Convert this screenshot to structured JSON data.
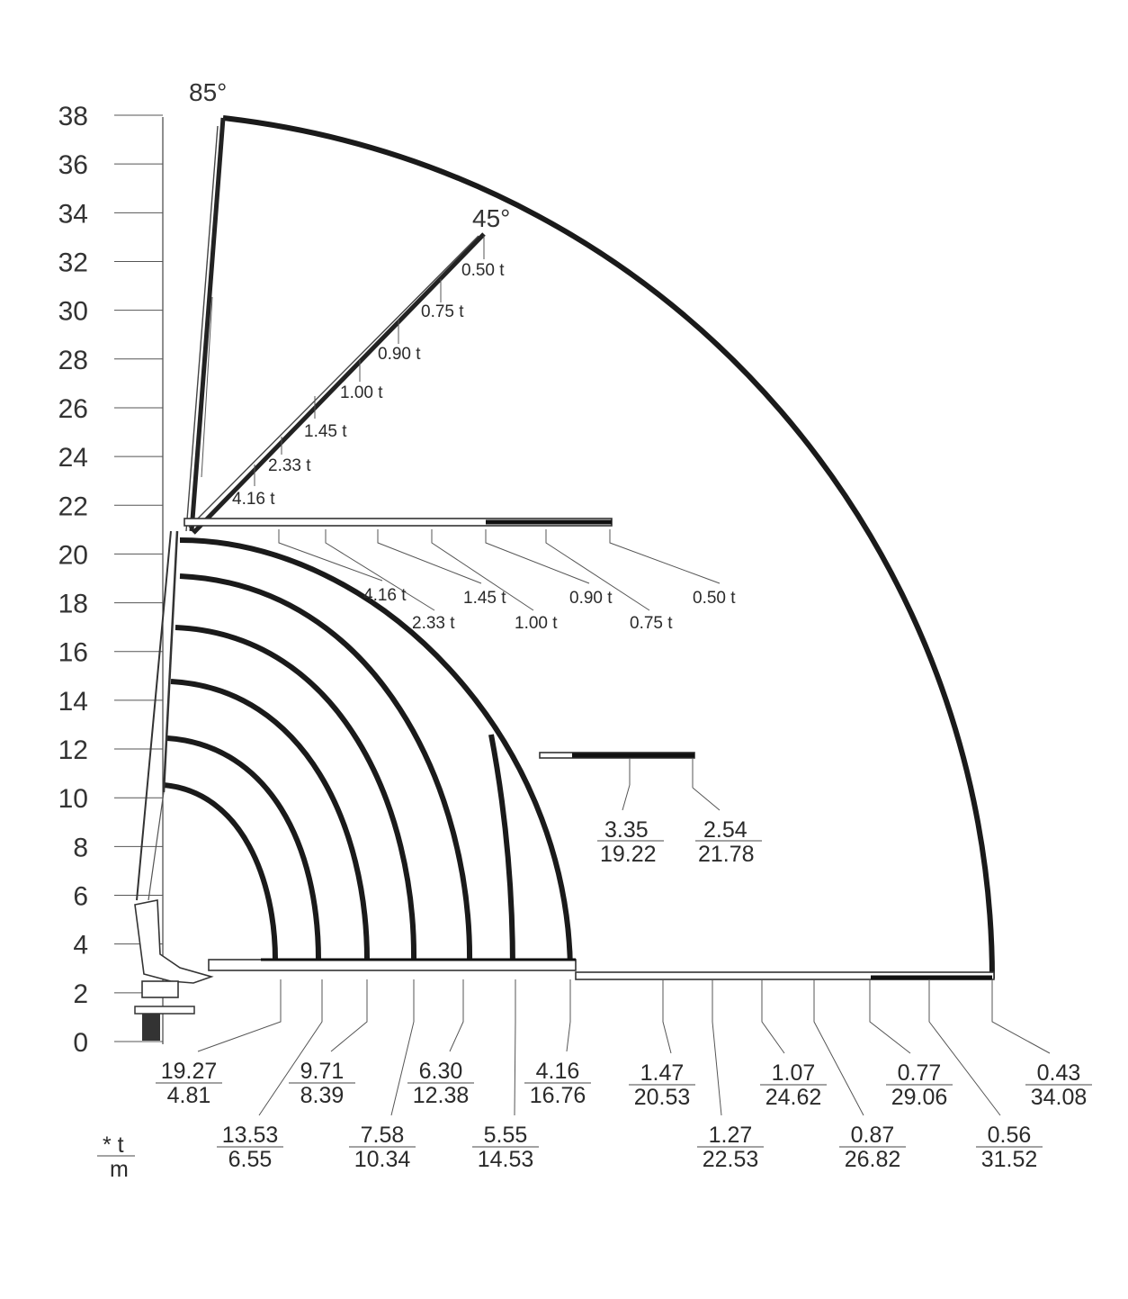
{
  "y_axis": {
    "ticks": [
      "0",
      "2",
      "4",
      "6",
      "8",
      "10",
      "12",
      "14",
      "16",
      "18",
      "20",
      "22",
      "24",
      "26",
      "28",
      "30",
      "32",
      "34",
      "36",
      "38"
    ]
  },
  "angles": {
    "a85": "85°",
    "a45": "45°"
  },
  "legend": {
    "top": "* t",
    "bottom": "m"
  },
  "boom45_loads": [
    "0.50 t",
    "0.75 t",
    "0.90 t",
    "1.00 t",
    "1.45 t",
    "2.33 t",
    "4.16 t"
  ],
  "horizontal_upper_loads": [
    "4.16 t",
    "2.33 t",
    "1.45 t",
    "1.00 t",
    "0.90 t",
    "0.75 t",
    "0.50 t"
  ],
  "mid_boom_pairs": [
    {
      "t": "3.35",
      "m": "19.22"
    },
    {
      "t": "2.54",
      "m": "21.78"
    }
  ],
  "bottom_pairs": [
    {
      "t": "19.27",
      "m": "4.81"
    },
    {
      "t": "13.53",
      "m": "6.55"
    },
    {
      "t": "9.71",
      "m": "8.39"
    },
    {
      "t": "7.58",
      "m": "10.34"
    },
    {
      "t": "6.30",
      "m": "12.38"
    },
    {
      "t": "5.55",
      "m": "14.53"
    },
    {
      "t": "4.16",
      "m": "16.76"
    },
    {
      "t": "1.47",
      "m": "20.53"
    },
    {
      "t": "1.27",
      "m": "22.53"
    },
    {
      "t": "1.07",
      "m": "24.62"
    },
    {
      "t": "0.87",
      "m": "26.82"
    },
    {
      "t": "0.77",
      "m": "29.06"
    },
    {
      "t": "0.56",
      "m": "31.52"
    },
    {
      "t": "0.43",
      "m": "34.08"
    }
  ]
}
